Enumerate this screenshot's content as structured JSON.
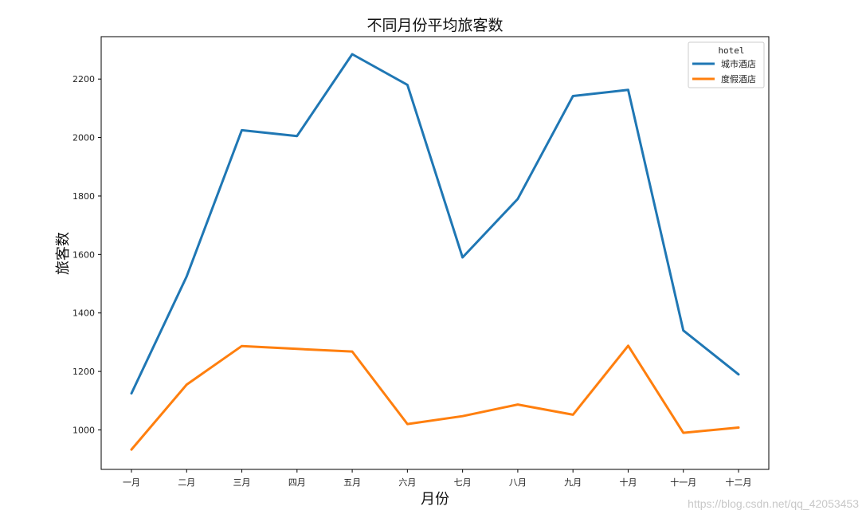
{
  "chart_data": {
    "type": "line",
    "title": "不同月份平均旅客数",
    "xlabel": "月份",
    "ylabel": "旅客数",
    "categories": [
      "一月",
      "二月",
      "三月",
      "四月",
      "五月",
      "六月",
      "七月",
      "八月",
      "九月",
      "十月",
      "十一月",
      "十二月"
    ],
    "yticks": [
      1000,
      1200,
      1400,
      1600,
      1800,
      2000,
      2200
    ],
    "ylim": [
      865,
      2345
    ],
    "legend_title": "hotel",
    "legend_position": "top-right",
    "grid": false,
    "series": [
      {
        "name": "城市酒店",
        "color": "#1f77b4",
        "values": [
          1125,
          1525,
          2025,
          2005,
          2285,
          2180,
          1590,
          1790,
          2142,
          2163,
          1340,
          1190
        ]
      },
      {
        "name": "度假酒店",
        "color": "#ff7f0e",
        "values": [
          933,
          1155,
          1287,
          1277,
          1268,
          1020,
          1047,
          1087,
          1052,
          1288,
          990,
          1008
        ]
      }
    ]
  },
  "watermark": "https://blog.csdn.net/qq_42053453"
}
